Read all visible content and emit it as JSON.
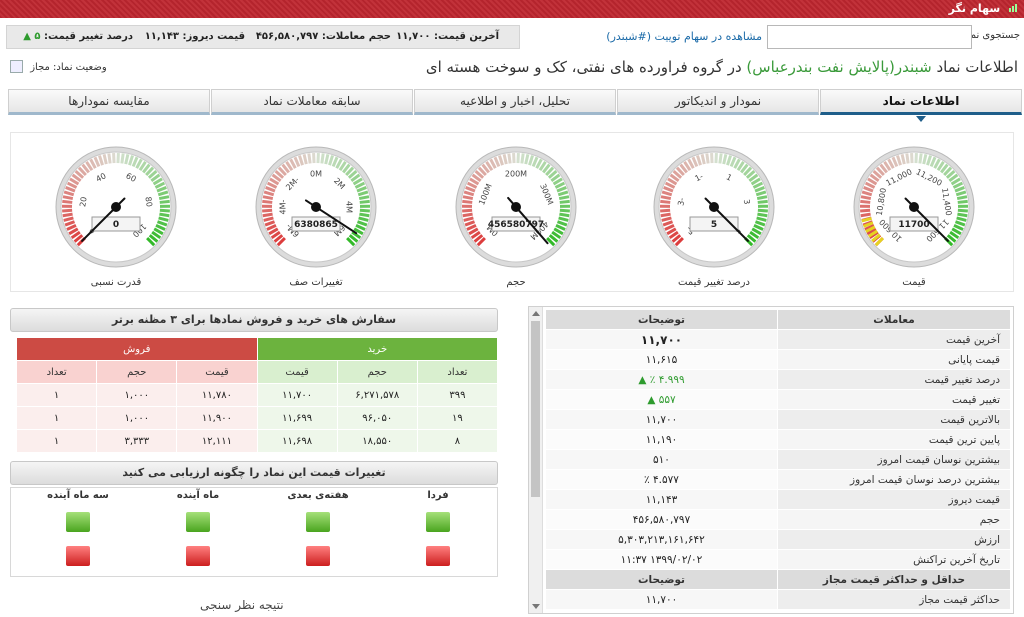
{
  "app": {
    "title": "سهام نگر"
  },
  "search": {
    "label": "جستجوی نماد",
    "value": "",
    "placeholder": ""
  },
  "tweets_link": "مشاهده در سهام تویيت (#شبندر)",
  "stats": {
    "last_price": "آخرین قیمت: ۱۱,۷۰۰",
    "volume": "حجم معاملات: ۴۵۶,۵۸۰,۷۹۷",
    "yesterday": "قیمت دیروز: ۱۱,۱۴۳",
    "change_label": "درصد تغییر قیمت:",
    "change_value": "۵",
    "change_arrow": "▲"
  },
  "headline": {
    "prefix": "اطلاعات نماد",
    "symbol": "شبندر(پالایش نفت بندرعباس)",
    "suffix": "در گروه فراورده های نفتی، کک و سوخت هسته ای"
  },
  "status": {
    "label": "وضعیت نماد: مجاز"
  },
  "tabs": [
    {
      "label": "اطلاعات نماد",
      "active": true
    },
    {
      "label": "نمودار و اندیکاتور",
      "active": false
    },
    {
      "label": "تحلیل، اخبار و اطلاعیه",
      "active": false
    },
    {
      "label": "سابقه معاملات نماد",
      "active": false
    },
    {
      "label": "مقایسه نمودارها",
      "active": false
    }
  ],
  "gauges": [
    {
      "label": "قیمت",
      "readout": "11700",
      "ticks": [
        "10,600",
        "10,800",
        "11,000",
        "11,200",
        "11,400",
        "11,600"
      ],
      "min": 10600,
      "max": 11700,
      "value": 11700
    },
    {
      "label": "درصد تغییر قیمت",
      "readout": "5",
      "ticks": [
        "-5",
        "-3",
        "-1",
        "1",
        "3",
        "5"
      ],
      "min": -5,
      "max": 5,
      "value": 5
    },
    {
      "label": "حجم",
      "readout": "456580797",
      "ticks": [
        "0M",
        "100M",
        "200M",
        "300M",
        "400M"
      ],
      "min": 0,
      "max": 450,
      "value": 456.58
    },
    {
      "label": "تغییرات صف",
      "readout": "6380865",
      "ticks": [
        "-6M",
        "-4M",
        "-2M",
        "0M",
        "2M",
        "4M",
        "6M"
      ],
      "min": -7,
      "max": 7,
      "value": 6.38
    },
    {
      "label": "قدرت نسبی",
      "readout": "0",
      "ticks": [
        "0",
        "20",
        "40",
        "60",
        "80",
        "100"
      ],
      "min": 0,
      "max": 100,
      "value": 0
    }
  ],
  "orders": {
    "title": "سفارش های خرید و فروش نمادها برای ۳ مظنه برتر",
    "buy_label": "خرید",
    "sell_label": "فروش",
    "buy_cols": [
      "تعداد",
      "حجم",
      "قیمت"
    ],
    "sell_cols": [
      "قیمت",
      "حجم",
      "تعداد"
    ],
    "rows": [
      {
        "buy_count": "۳۹۹",
        "buy_vol": "۶,۲۷۱,۵۷۸",
        "buy_price": "۱۱,۷۰۰",
        "sell_price": "۱۱,۷۸۰",
        "sell_vol": "۱,۰۰۰",
        "sell_count": "۱"
      },
      {
        "buy_count": "۱۹",
        "buy_vol": "۹۶,۰۵۰",
        "buy_price": "۱۱,۶۹۹",
        "sell_price": "۱۱,۹۰۰",
        "sell_vol": "۱,۰۰۰",
        "sell_count": "۱"
      },
      {
        "buy_count": "۸",
        "buy_vol": "۱۸,۵۵۰",
        "buy_price": "۱۱,۶۹۸",
        "sell_price": "۱۲,۱۱۱",
        "sell_vol": "۳,۳۳۳",
        "sell_count": "۱"
      }
    ]
  },
  "prediction": {
    "title": "تغییرات قیمت این نماد را چگونه ارزیابی می کنید",
    "columns": [
      "فردا",
      "هفته‌ی بعدی",
      "ماه آینده",
      "سه ماه آینده"
    ],
    "result_title": "نتیجه نظر سنجی"
  },
  "trades": {
    "head_label": "معاملات",
    "head_value": "توضیحات",
    "rows": [
      {
        "label": "آخرین قیمت",
        "value": "۱۱,۷۰۰",
        "style": "bold"
      },
      {
        "label": "قیمت پایانی",
        "value": "۱۱,۶۱۵",
        "style": ""
      },
      {
        "label": "درصد تغییر قیمت",
        "value": "۴.۹۹۹ ٪ ▲",
        "style": "up"
      },
      {
        "label": "تغییر قیمت",
        "value": "۵۵۷ ▲",
        "style": "up"
      },
      {
        "label": "بالاترین قیمت",
        "value": "۱۱,۷۰۰",
        "style": ""
      },
      {
        "label": "پایین ترین قیمت",
        "value": "۱۱,۱۹۰",
        "style": ""
      },
      {
        "label": "بیشترین نوسان قیمت امروز",
        "value": "۵۱۰",
        "style": ""
      },
      {
        "label": "بیشترین درصد نوسان قیمت امروز",
        "value": "۴.۵۷۷ ٪",
        "style": ""
      },
      {
        "label": "قیمت دیروز",
        "value": "۱۱,۱۴۳",
        "style": ""
      },
      {
        "label": "حجم",
        "value": "۴۵۶,۵۸۰,۷۹۷",
        "style": ""
      },
      {
        "label": "ارزش",
        "value": "۵,۳۰۳,۲۱۳,۱۶۱,۶۴۲",
        "style": ""
      },
      {
        "label": "تاریخ آخرین تراکنش",
        "value": "۱۳۹۹/۰۲/۰۲ ۱۱:۳۷",
        "style": ""
      }
    ],
    "section2_label": "حداقل و حداکثر قیمت مجاز",
    "section2_value": "توضیحات",
    "rows2": [
      {
        "label": "حداکثر قیمت مجاز",
        "value": "۱۱,۷۰۰"
      }
    ]
  }
}
